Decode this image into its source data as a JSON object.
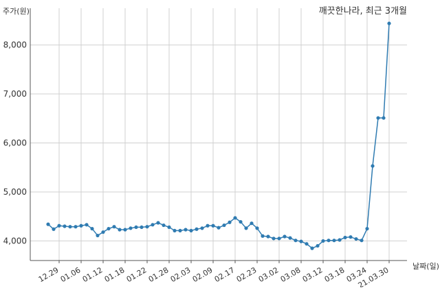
{
  "chart_data": {
    "type": "line",
    "title": "깨끗한나라, 최근 3개월",
    "xlabel": "날짜(일)",
    "ylabel": "주가(원)",
    "ylim": [
      3600,
      8750
    ],
    "grid": true,
    "legend": "none",
    "colors": {
      "line": "#2f7bb1",
      "grid": "#d0d0d0",
      "axis": "#555555"
    },
    "yticks": [
      {
        "value": 4000,
        "label": "4,000"
      },
      {
        "value": 5000,
        "label": "5,000"
      },
      {
        "value": 6000,
        "label": "6,000"
      },
      {
        "value": 7000,
        "label": "7,000"
      },
      {
        "value": 8000,
        "label": "8,000"
      }
    ],
    "xticks": [
      {
        "index": 2,
        "label": "12.29"
      },
      {
        "index": 6,
        "label": "01.06"
      },
      {
        "index": 10,
        "label": "01.12"
      },
      {
        "index": 14,
        "label": "01.18"
      },
      {
        "index": 18,
        "label": "01.22"
      },
      {
        "index": 22,
        "label": "01.28"
      },
      {
        "index": 26,
        "label": "02.03"
      },
      {
        "index": 30,
        "label": "02.09"
      },
      {
        "index": 34,
        "label": "02.17"
      },
      {
        "index": 38,
        "label": "02.23"
      },
      {
        "index": 42,
        "label": "03.02"
      },
      {
        "index": 46,
        "label": "03.08"
      },
      {
        "index": 50,
        "label": "03.12"
      },
      {
        "index": 54,
        "label": "03.18"
      },
      {
        "index": 58,
        "label": "03.24"
      },
      {
        "index": 62,
        "label": "21.03.30"
      }
    ],
    "series": [
      {
        "values": [
          4340,
          4240,
          4310,
          4300,
          4290,
          4290,
          4310,
          4330,
          4250,
          4110,
          4180,
          4250,
          4290,
          4230,
          4230,
          4260,
          4280,
          4280,
          4290,
          4330,
          4370,
          4320,
          4280,
          4210,
          4210,
          4230,
          4210,
          4240,
          4260,
          4310,
          4310,
          4270,
          4320,
          4380,
          4470,
          4390,
          4260,
          4360,
          4260,
          4100,
          4090,
          4050,
          4050,
          4090,
          4060,
          4010,
          3990,
          3940,
          3850,
          3900,
          4000,
          4010,
          4010,
          4020,
          4070,
          4080,
          4040,
          4010,
          4250,
          5530,
          6510,
          6510,
          8440
        ]
      }
    ]
  }
}
